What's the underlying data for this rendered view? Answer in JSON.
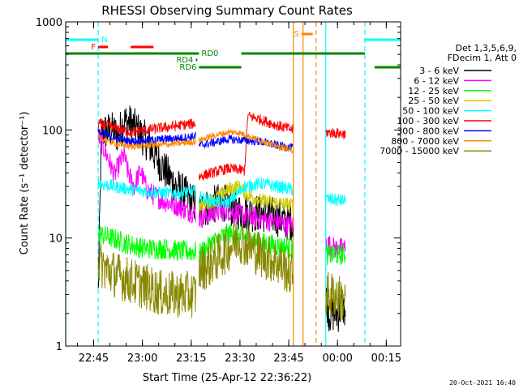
{
  "chart_data": {
    "type": "line",
    "title": "RHESSI Observing Summary Count Rates",
    "xlabel": "Start Time (25-Apr-12 22:36:22)",
    "ylabel": "Count Rate (s⁻¹ detector⁻¹)",
    "yscale": "log",
    "ylim": [
      1,
      1000
    ],
    "xlim_minutes": [
      0,
      103
    ],
    "y_ticks": [
      {
        "value": 1,
        "label": "1"
      },
      {
        "value": 10,
        "label": "10"
      },
      {
        "value": 100,
        "label": "100"
      },
      {
        "value": 1000,
        "label": "1000"
      }
    ],
    "x_ticks": [
      {
        "minute": 8.6,
        "label": "22:45"
      },
      {
        "minute": 23.6,
        "label": "23:00"
      },
      {
        "minute": 38.6,
        "label": "23:15"
      },
      {
        "minute": 53.6,
        "label": "23:30"
      },
      {
        "minute": 68.6,
        "label": "23:45"
      },
      {
        "minute": 83.6,
        "label": "00:00"
      },
      {
        "minute": 98.6,
        "label": "00:15"
      }
    ],
    "legend": {
      "header": [
        "Det 1,3,5,6,9,",
        "FDecim 1, Att 0"
      ],
      "position": "right"
    },
    "segments": [
      [
        10,
        40
      ],
      [
        41,
        70
      ],
      [
        80,
        86
      ]
    ],
    "series": [
      {
        "name": "3 - 6 keV",
        "color": "#000000",
        "noise": 0.18,
        "values": [
          [
            10,
            3
          ],
          [
            11,
            95
          ],
          [
            14,
            100
          ],
          [
            16,
            90
          ],
          [
            18,
            120
          ],
          [
            20,
            115
          ],
          [
            22,
            100
          ],
          [
            24,
            85
          ],
          [
            26,
            70
          ],
          [
            28,
            55
          ],
          [
            31,
            40
          ],
          [
            34,
            30
          ],
          [
            37,
            25
          ],
          [
            40,
            20
          ],
          [
            41,
            18
          ],
          [
            45,
            20
          ],
          [
            48,
            22
          ],
          [
            52,
            18
          ],
          [
            56,
            17
          ],
          [
            60,
            17
          ],
          [
            64,
            16
          ],
          [
            68,
            14
          ],
          [
            70,
            14
          ],
          [
            80,
            3
          ],
          [
            81,
            2
          ],
          [
            84,
            2
          ],
          [
            85,
            2.5
          ],
          [
            86,
            2
          ]
        ]
      },
      {
        "name": "6 - 12 keV",
        "color": "#ff00ff",
        "noise": 0.1,
        "values": [
          [
            10,
            90
          ],
          [
            11,
            75
          ],
          [
            13,
            55
          ],
          [
            15,
            38
          ],
          [
            16,
            45
          ],
          [
            18,
            60
          ],
          [
            19,
            42
          ],
          [
            21,
            30
          ],
          [
            23,
            42
          ],
          [
            25,
            28
          ],
          [
            27,
            25
          ],
          [
            30,
            22
          ],
          [
            34,
            20
          ],
          [
            37,
            18
          ],
          [
            40,
            17
          ],
          [
            41,
            15
          ],
          [
            45,
            17
          ],
          [
            50,
            18
          ],
          [
            55,
            16
          ],
          [
            60,
            15
          ],
          [
            65,
            14
          ],
          [
            70,
            13
          ],
          [
            80,
            9
          ],
          [
            83,
            8
          ],
          [
            86,
            8
          ]
        ]
      },
      {
        "name": "12 - 25 keV",
        "color": "#00ff00",
        "noise": 0.1,
        "values": [
          [
            10,
            11
          ],
          [
            14,
            10
          ],
          [
            18,
            9
          ],
          [
            24,
            8
          ],
          [
            30,
            8
          ],
          [
            36,
            7.5
          ],
          [
            40,
            7.5
          ],
          [
            41,
            7
          ],
          [
            45,
            9
          ],
          [
            50,
            11
          ],
          [
            55,
            10
          ],
          [
            60,
            9
          ],
          [
            65,
            8.5
          ],
          [
            70,
            8
          ],
          [
            80,
            7
          ],
          [
            86,
            7
          ]
        ]
      },
      {
        "name": "25 - 50 keV",
        "color": "#cccc00",
        "noise": 0.07,
        "values": [
          [
            41,
            20
          ],
          [
            45,
            22
          ],
          [
            50,
            28
          ],
          [
            53,
            30
          ],
          [
            56,
            25
          ],
          [
            60,
            22
          ],
          [
            65,
            21
          ],
          [
            70,
            20
          ]
        ]
      },
      {
        "name": "50 - 100 keV",
        "color": "#00ffff",
        "noise": 0.06,
        "values": [
          [
            10,
            32
          ],
          [
            15,
            30
          ],
          [
            20,
            28
          ],
          [
            25,
            27
          ],
          [
            30,
            26
          ],
          [
            35,
            26
          ],
          [
            40,
            27
          ],
          [
            41,
            24
          ],
          [
            45,
            22
          ],
          [
            50,
            21
          ],
          [
            55,
            30
          ],
          [
            60,
            32
          ],
          [
            65,
            30
          ],
          [
            70,
            28
          ],
          [
            80,
            23
          ],
          [
            86,
            22
          ]
        ]
      },
      {
        "name": "100 - 300 keV",
        "color": "#ff0000",
        "noise": 0.05,
        "values": [
          [
            10,
            115
          ],
          [
            15,
            105
          ],
          [
            20,
            95
          ],
          [
            25,
            100
          ],
          [
            30,
            105
          ],
          [
            35,
            110
          ],
          [
            40,
            115
          ],
          [
            41,
            37
          ],
          [
            45,
            40
          ],
          [
            50,
            44
          ],
          [
            55,
            42
          ],
          [
            56,
            135
          ],
          [
            60,
            125
          ],
          [
            65,
            110
          ],
          [
            70,
            100
          ],
          [
            80,
            95
          ],
          [
            86,
            92
          ]
        ]
      },
      {
        "name": "300 - 800 keV",
        "color": "#0000ff",
        "noise": 0.04,
        "values": [
          [
            10,
            95
          ],
          [
            15,
            85
          ],
          [
            20,
            78
          ],
          [
            25,
            80
          ],
          [
            30,
            82
          ],
          [
            35,
            84
          ],
          [
            40,
            88
          ],
          [
            41,
            72
          ],
          [
            45,
            76
          ],
          [
            50,
            82
          ],
          [
            55,
            80
          ],
          [
            60,
            78
          ],
          [
            65,
            72
          ],
          [
            70,
            68
          ]
        ]
      },
      {
        "name": "800 - 7000 keV",
        "color": "#ff8800",
        "noise": 0.03,
        "values": [
          [
            10,
            85
          ],
          [
            15,
            75
          ],
          [
            20,
            70
          ],
          [
            25,
            72
          ],
          [
            30,
            73
          ],
          [
            35,
            75
          ],
          [
            40,
            78
          ],
          [
            41,
            80
          ],
          [
            45,
            88
          ],
          [
            50,
            95
          ],
          [
            53,
            95
          ],
          [
            56,
            88
          ],
          [
            60,
            80
          ],
          [
            65,
            70
          ],
          [
            70,
            65
          ]
        ]
      },
      {
        "name": "7000 - 15000 keV",
        "color": "#888800",
        "noise": 0.22,
        "values": [
          [
            10,
            6
          ],
          [
            13,
            5
          ],
          [
            16,
            4.5
          ],
          [
            20,
            4
          ],
          [
            25,
            3.5
          ],
          [
            30,
            3
          ],
          [
            35,
            3
          ],
          [
            40,
            3
          ],
          [
            41,
            5
          ],
          [
            45,
            6
          ],
          [
            50,
            8
          ],
          [
            53,
            10
          ],
          [
            55,
            9
          ],
          [
            60,
            7
          ],
          [
            65,
            6
          ],
          [
            70,
            4.5
          ],
          [
            80,
            3
          ],
          [
            83,
            3
          ],
          [
            86,
            2.5
          ]
        ]
      }
    ],
    "status_bars": [
      {
        "label": "N",
        "color": "#00ffff",
        "segments": [
          [
            0,
            10
          ],
          [
            92,
            103
          ]
        ]
      },
      {
        "label": "F",
        "color": "#ff0000",
        "segments": [
          [
            10,
            13
          ],
          [
            20,
            27
          ]
        ]
      },
      {
        "label": "S",
        "color": "#ff8800",
        "segments": [
          [
            72.5,
            76
          ]
        ]
      },
      {
        "label": "RD0",
        "color": "#008800",
        "segments": [
          [
            0,
            41
          ],
          [
            54,
            92
          ]
        ]
      },
      {
        "label": "RD4",
        "color": "#008800",
        "segments": [
          [
            40,
            40.5
          ]
        ]
      },
      {
        "label": "RD6",
        "color": "#008800",
        "segments": [
          [
            41,
            54
          ],
          [
            95,
            103
          ]
        ]
      }
    ],
    "vertical_markers": [
      {
        "minute": 0,
        "color": "#00ffff",
        "style": "solid"
      },
      {
        "minute": 10,
        "color": "#00ffff",
        "style": "dashed"
      },
      {
        "minute": 70,
        "color": "#ff8800",
        "style": "solid"
      },
      {
        "minute": 73,
        "color": "#ff8800",
        "style": "solid"
      },
      {
        "minute": 77,
        "color": "#ff8800",
        "style": "dashed"
      },
      {
        "minute": 80,
        "color": "#00ffff",
        "style": "solid"
      },
      {
        "minute": 92,
        "color": "#00ffff",
        "style": "dashed"
      }
    ],
    "footer_date": "20-Oct-2021 16:40"
  }
}
